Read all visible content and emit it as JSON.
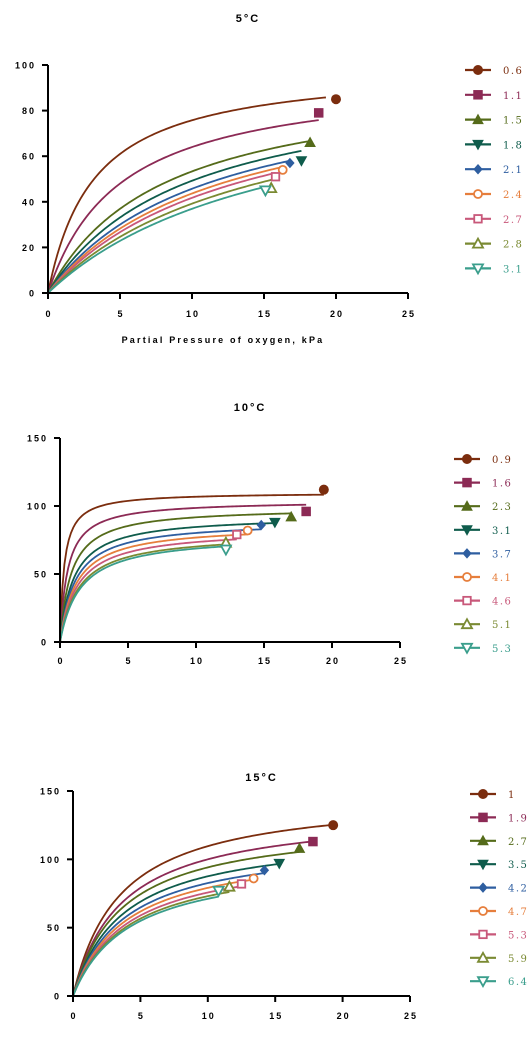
{
  "colors": [
    "#7B2D0E",
    "#8C2A55",
    "#556B1A",
    "#0F5C4C",
    "#2E5EA0",
    "#E67E3C",
    "#C8587A",
    "#7A8A32",
    "#3A9E8C"
  ],
  "markers": [
    "circle",
    "square",
    "triangle-up",
    "triangle-down",
    "diamond",
    "circle-open",
    "square-open",
    "triangle-up-open",
    "triangle-down-open"
  ],
  "chart_data": [
    {
      "type": "line",
      "title": "5°C",
      "xlabel": "Partial Pressure of oxygen, kPa",
      "ylabel": "",
      "xlim": [
        0,
        25
      ],
      "ylim": [
        0,
        100
      ],
      "xticks": [
        0,
        5,
        10,
        15,
        20,
        25
      ],
      "yticks": [
        0,
        20,
        40,
        60,
        80,
        100
      ],
      "series": [
        {
          "name": "0.6",
          "vmax": 100,
          "km": 3.2,
          "x_end": 19.3,
          "point": [
            20.0,
            85
          ]
        },
        {
          "name": "1.1",
          "vmax": 96,
          "km": 5.0,
          "x_end": 18.8,
          "point": [
            18.8,
            79
          ]
        },
        {
          "name": "1.5",
          "vmax": 96,
          "km": 8.0,
          "x_end": 18.2,
          "point": [
            18.2,
            66
          ]
        },
        {
          "name": "1.8",
          "vmax": 96,
          "km": 9.5,
          "x_end": 17.6,
          "point": [
            17.6,
            58
          ]
        },
        {
          "name": "2.1",
          "vmax": 96,
          "km": 11.0,
          "x_end": 16.8,
          "point": [
            16.8,
            57
          ]
        },
        {
          "name": "2.4",
          "vmax": 96,
          "km": 12.0,
          "x_end": 16.3,
          "point": [
            16.3,
            54
          ]
        },
        {
          "name": "2.7",
          "vmax": 96,
          "km": 13.0,
          "x_end": 15.8,
          "point": [
            15.8,
            51
          ]
        },
        {
          "name": "2.8",
          "vmax": 96,
          "km": 14.5,
          "x_end": 15.5,
          "point": [
            15.5,
            46
          ]
        },
        {
          "name": "3.1",
          "vmax": 96,
          "km": 16.0,
          "x_end": 15.1,
          "point": [
            15.1,
            45
          ]
        }
      ]
    },
    {
      "type": "line",
      "title": "10°C",
      "xlabel": "",
      "ylabel": "",
      "xlim": [
        0,
        25
      ],
      "ylim": [
        0,
        150
      ],
      "xticks": [
        0,
        5,
        10,
        15,
        20,
        25
      ],
      "yticks": [
        0,
        50,
        100,
        150
      ],
      "series": [
        {
          "name": "0.9",
          "vmax": 110,
          "km": 0.3,
          "x_end": 19.4,
          "point": [
            19.4,
            112
          ]
        },
        {
          "name": "1.6",
          "vmax": 104,
          "km": 0.55,
          "x_end": 18.1,
          "point": [
            18.1,
            96
          ]
        },
        {
          "name": "2.3",
          "vmax": 99,
          "km": 0.8,
          "x_end": 17.0,
          "point": [
            17.0,
            92
          ]
        },
        {
          "name": "3.1",
          "vmax": 93,
          "km": 1.0,
          "x_end": 15.8,
          "point": [
            15.8,
            88
          ]
        },
        {
          "name": "3.7",
          "vmax": 89,
          "km": 1.1,
          "x_end": 14.8,
          "point": [
            14.8,
            86
          ]
        },
        {
          "name": "4.1",
          "vmax": 86,
          "km": 1.2,
          "x_end": 13.8,
          "point": [
            13.8,
            82
          ]
        },
        {
          "name": "4.6",
          "vmax": 83,
          "km": 1.3,
          "x_end": 13.0,
          "point": [
            13.0,
            79
          ]
        },
        {
          "name": "5.1",
          "vmax": 80,
          "km": 1.4,
          "x_end": 12.2,
          "point": [
            12.2,
            73
          ]
        },
        {
          "name": "5.3",
          "vmax": 79,
          "km": 1.5,
          "x_end": 12.2,
          "point": [
            12.2,
            68
          ]
        }
      ]
    },
    {
      "type": "line",
      "title": "15°C",
      "xlabel": "",
      "ylabel": "",
      "xlim": [
        0,
        25
      ],
      "ylim": [
        0,
        150
      ],
      "xticks": [
        0,
        5,
        10,
        15,
        20,
        25
      ],
      "yticks": [
        0,
        50,
        100,
        150
      ],
      "series": [
        {
          "name": "1",
          "vmax": 148,
          "km": 3.5,
          "x_end": 19.2,
          "point": [
            19.3,
            125
          ]
        },
        {
          "name": "1.9",
          "vmax": 136,
          "km": 3.6,
          "x_end": 17.8,
          "point": [
            17.8,
            113
          ]
        },
        {
          "name": "2.7",
          "vmax": 128,
          "km": 3.6,
          "x_end": 16.8,
          "point": [
            16.8,
            108
          ]
        },
        {
          "name": "3.5",
          "vmax": 120,
          "km": 3.7,
          "x_end": 15.2,
          "point": [
            15.3,
            97
          ]
        },
        {
          "name": "4.2",
          "vmax": 114,
          "km": 3.8,
          "x_end": 14.2,
          "point": [
            14.2,
            92
          ]
        },
        {
          "name": "4.7",
          "vmax": 110,
          "km": 3.9,
          "x_end": 13.4,
          "point": [
            13.4,
            86
          ]
        },
        {
          "name": "5.3",
          "vmax": 106,
          "km": 4.0,
          "x_end": 12.6,
          "point": [
            12.5,
            82
          ]
        },
        {
          "name": "5.9",
          "vmax": 103,
          "km": 4.1,
          "x_end": 11.6,
          "point": [
            11.6,
            80
          ]
        },
        {
          "name": "6.4",
          "vmax": 101,
          "km": 4.2,
          "x_end": 10.8,
          "point": [
            10.8,
            77
          ]
        }
      ]
    }
  ]
}
